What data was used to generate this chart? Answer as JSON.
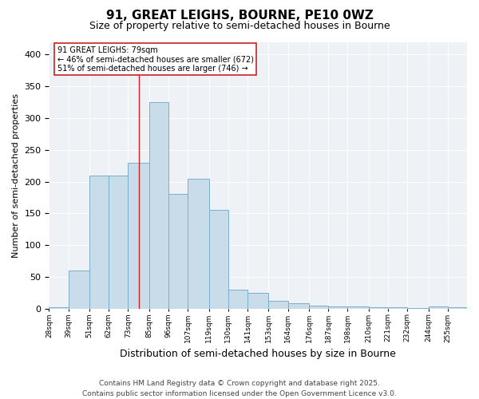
{
  "title1": "91, GREAT LEIGHS, BOURNE, PE10 0WZ",
  "title2": "Size of property relative to semi-detached houses in Bourne",
  "xlabel": "Distribution of semi-detached houses by size in Bourne",
  "ylabel": "Number of semi-detached properties",
  "bin_labels": [
    "28sqm",
    "39sqm",
    "51sqm",
    "62sqm",
    "73sqm",
    "85sqm",
    "96sqm",
    "107sqm",
    "119sqm",
    "130sqm",
    "141sqm",
    "153sqm",
    "164sqm",
    "176sqm",
    "187sqm",
    "198sqm",
    "210sqm",
    "221sqm",
    "232sqm",
    "244sqm",
    "255sqm"
  ],
  "bin_edges": [
    28,
    39,
    51,
    62,
    73,
    85,
    96,
    107,
    119,
    130,
    141,
    153,
    164,
    176,
    187,
    198,
    210,
    221,
    232,
    244,
    255
  ],
  "bar_heights": [
    2,
    60,
    210,
    210,
    230,
    325,
    180,
    205,
    155,
    30,
    25,
    12,
    9,
    5,
    4,
    3,
    2,
    2,
    1,
    3,
    2
  ],
  "bar_color": "#c9dcea",
  "bar_edge_color": "#7bafc9",
  "property_size": 79,
  "vline_color": "#cc2222",
  "annotation_text": "91 GREAT LEIGHS: 79sqm\n← 46% of semi-detached houses are smaller (672)\n51% of semi-detached houses are larger (746) →",
  "annotation_box_color": "#ffffff",
  "annotation_box_edgecolor": "#cc2222",
  "ylim": [
    0,
    420
  ],
  "yticks": [
    0,
    50,
    100,
    150,
    200,
    250,
    300,
    350,
    400
  ],
  "footer_line1": "Contains HM Land Registry data © Crown copyright and database right 2025.",
  "footer_line2": "Contains public sector information licensed under the Open Government Licence v3.0.",
  "bg_color": "#ffffff",
  "plot_bg_color": "#eef2f7",
  "grid_color": "#ffffff",
  "title_fontsize": 11,
  "subtitle_fontsize": 9,
  "ylabel_fontsize": 8,
  "xlabel_fontsize": 9,
  "xtick_fontsize": 6.5,
  "ytick_fontsize": 8,
  "footer_fontsize": 6.5
}
